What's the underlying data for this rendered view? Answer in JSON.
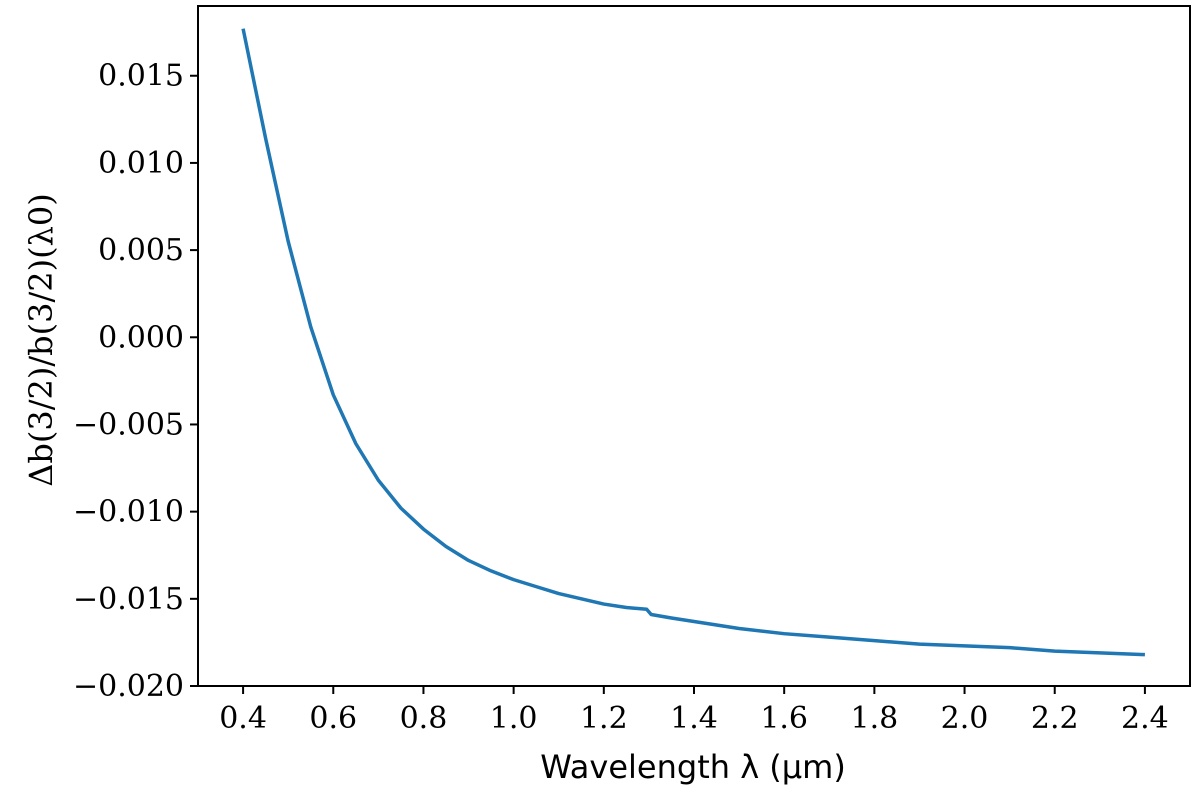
{
  "chart_data": {
    "type": "line",
    "title": "",
    "xlabel": "Wavelength λ (μm)",
    "ylabel": "Δb(3/2)/b(3/2)(λ0)",
    "xlim": [
      0.3,
      2.5
    ],
    "ylim": [
      -0.02,
      0.019
    ],
    "grid": false,
    "x_ticks": [
      0.4,
      0.6,
      0.8,
      1.0,
      1.2,
      1.4,
      1.6,
      1.8,
      2.0,
      2.2,
      2.4
    ],
    "x_tick_labels": [
      "0.4",
      "0.6",
      "0.8",
      "1.0",
      "1.2",
      "1.4",
      "1.6",
      "1.8",
      "2.0",
      "2.2",
      "2.4"
    ],
    "y_ticks": [
      0.015,
      0.01,
      0.005,
      0.0,
      -0.005,
      -0.01,
      -0.015,
      -0.02
    ],
    "y_tick_labels": [
      "0.015",
      "0.010",
      "0.005",
      "0.000",
      "−0.005",
      "−0.010",
      "−0.015",
      "−0.020"
    ],
    "series": [
      {
        "color": "#1f77b4",
        "x": [
          0.4,
          0.45,
          0.5,
          0.55,
          0.6,
          0.65,
          0.7,
          0.75,
          0.8,
          0.85,
          0.9,
          0.95,
          1.0,
          1.05,
          1.1,
          1.15,
          1.2,
          1.25,
          1.295,
          1.305,
          1.35,
          1.4,
          1.5,
          1.6,
          1.7,
          1.8,
          1.9,
          2.0,
          2.1,
          2.2,
          2.3,
          2.4
        ],
        "y": [
          0.0177,
          0.0114,
          0.0055,
          0.0006,
          -0.0033,
          -0.0061,
          -0.0082,
          -0.0098,
          -0.011,
          -0.012,
          -0.0128,
          -0.0134,
          -0.0139,
          -0.0143,
          -0.0147,
          -0.015,
          -0.0153,
          -0.0155,
          -0.0156,
          -0.0159,
          -0.0161,
          -0.0163,
          -0.0167,
          -0.017,
          -0.0172,
          -0.0174,
          -0.0176,
          -0.0177,
          -0.0178,
          -0.018,
          -0.0181,
          -0.0182
        ]
      }
    ]
  }
}
